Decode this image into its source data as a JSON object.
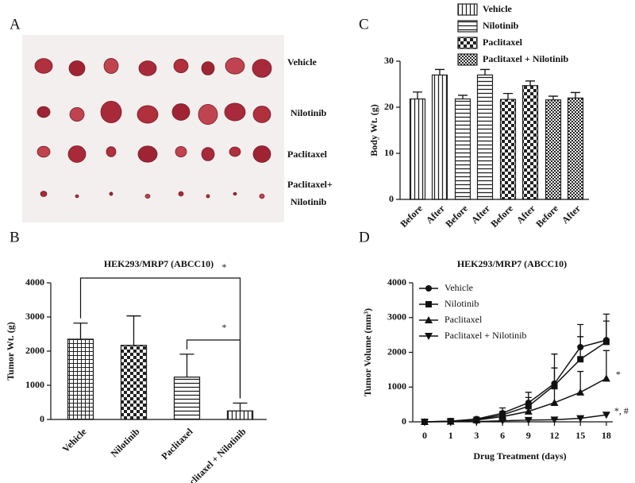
{
  "panel_labels": [
    "A",
    "B",
    "C",
    "D"
  ],
  "photo": {
    "row_labels": [
      [
        "Vehicle"
      ],
      [
        "Nilotinib"
      ],
      [
        "Paclitaxel"
      ],
      [
        "Paclitaxel+",
        "Nilotinib"
      ]
    ]
  },
  "chart_data": [
    {
      "type": "bar",
      "title": "HEK293/MRP7 (ABCC10)",
      "y_label": "Tumor Wt. (g)",
      "categories": [
        "Vehicle",
        "Nilotinib",
        "Paclitaxel",
        "Paclitaxel + Nilotinib"
      ],
      "values": [
        2350,
        2170,
        1240,
        250
      ],
      "errors": [
        470,
        860,
        670,
        230
      ],
      "patterns": [
        "crosshatch",
        "checker",
        "horizontal",
        "vertical"
      ],
      "color": "#222222",
      "ylim": [
        0,
        4000
      ],
      "yticks": [
        0,
        1000,
        2000,
        3000,
        4000
      ],
      "annotations": [
        "*",
        "*"
      ]
    },
    {
      "type": "grouped_bar",
      "y_label": "Body Wt. (g)",
      "categories": [
        "Before",
        "After"
      ],
      "color": "#222222",
      "series": [
        {
          "name": "Vehicle",
          "pattern": "vertical",
          "values": [
            21.8,
            27.0
          ],
          "errors": [
            1.5,
            1.2
          ]
        },
        {
          "name": "Nilotinib",
          "pattern": "horizontal",
          "values": [
            21.8,
            27.0
          ],
          "errors": [
            0.8,
            1.2
          ]
        },
        {
          "name": "Paclitaxel",
          "pattern": "checker",
          "values": [
            21.7,
            24.7
          ],
          "errors": [
            1.3,
            1.0
          ]
        },
        {
          "name": "Paclitaxel + Nilotinib",
          "pattern": "smallchecker",
          "values": [
            21.6,
            22.0
          ],
          "errors": [
            0.8,
            1.2
          ]
        }
      ],
      "ylim": [
        0,
        30
      ],
      "yticks": [
        0,
        10,
        20,
        30
      ]
    },
    {
      "type": "line",
      "title": "HEK293/MRP7 (ABCC10)",
      "x_label": "Drug Treatment (days)",
      "y_label": "Tumor Volume (mm³)",
      "categories": [
        0,
        1,
        3,
        6,
        9,
        12,
        15,
        18
      ],
      "color": "#111111",
      "series": [
        {
          "name": "Vehicle",
          "marker": "circle",
          "values": [
            0,
            20,
            80,
            250,
            550,
            1100,
            2150,
            2350
          ],
          "errors": [
            0,
            20,
            40,
            150,
            300,
            850,
            650,
            750
          ]
        },
        {
          "name": "Nilotinib",
          "marker": "square",
          "values": [
            0,
            20,
            60,
            200,
            450,
            1050,
            1800,
            2300
          ],
          "errors": [
            0,
            20,
            40,
            100,
            250,
            500,
            650,
            600
          ]
        },
        {
          "name": "Paclitaxel",
          "marker": "triangle-up",
          "values": [
            0,
            10,
            50,
            150,
            300,
            550,
            850,
            1250
          ],
          "errors": [
            0,
            10,
            30,
            80,
            200,
            400,
            600,
            800
          ]
        },
        {
          "name": "Paclitaxel + Nilotinib",
          "marker": "triangle-down",
          "values": [
            0,
            5,
            10,
            30,
            50,
            60,
            100,
            200
          ],
          "errors": [
            0,
            5,
            10,
            20,
            20,
            30,
            40,
            60
          ]
        }
      ],
      "ylim": [
        0,
        4000
      ],
      "yticks": [
        0,
        1000,
        2000,
        3000,
        4000
      ],
      "annotations": [
        "*",
        "*, #"
      ]
    }
  ]
}
